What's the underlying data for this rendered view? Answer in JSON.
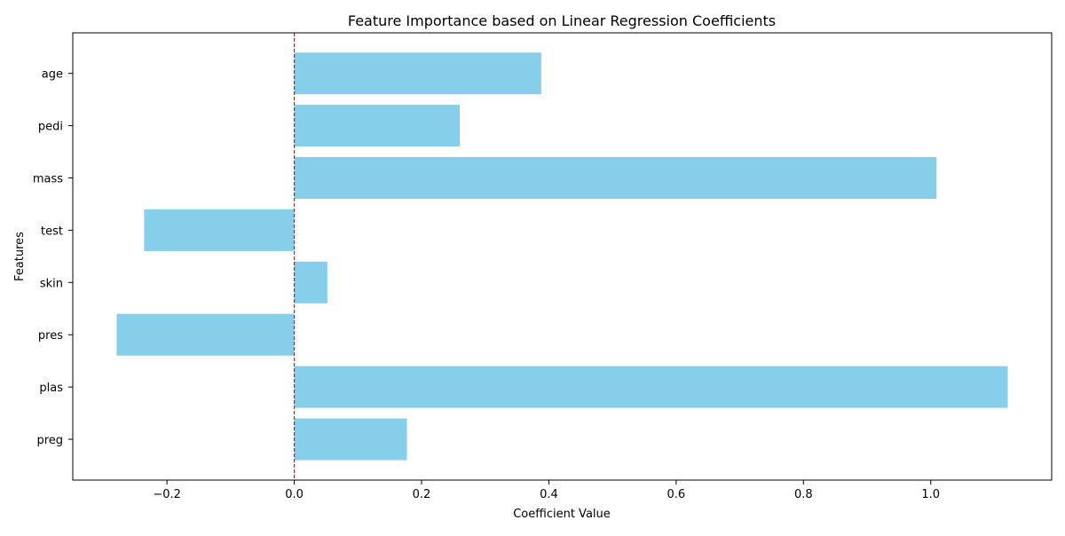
{
  "chart_data": {
    "type": "bar",
    "orientation": "horizontal",
    "title": "Feature Importance based on Linear Regression Coefficients",
    "xlabel": "Coefficient Value",
    "ylabel": "Features",
    "categories": [
      "preg",
      "plas",
      "pres",
      "skin",
      "test",
      "mass",
      "pedi",
      "age"
    ],
    "values": [
      0.177,
      1.121,
      -0.279,
      0.052,
      -0.236,
      1.009,
      0.26,
      0.388
    ],
    "xlim": [
      -0.348,
      1.19
    ],
    "xticks": [
      -0.2,
      0.0,
      0.2,
      0.4,
      0.6,
      0.8,
      1.0
    ],
    "xtick_labels": [
      "−0.2",
      "0.0",
      "0.2",
      "0.4",
      "0.6",
      "0.8",
      "1.0"
    ],
    "reference_line": {
      "x": 0,
      "style": "dashed",
      "color": "#ff0000"
    },
    "bar_color": "#87ceeb",
    "grid": false,
    "legend": "none"
  }
}
